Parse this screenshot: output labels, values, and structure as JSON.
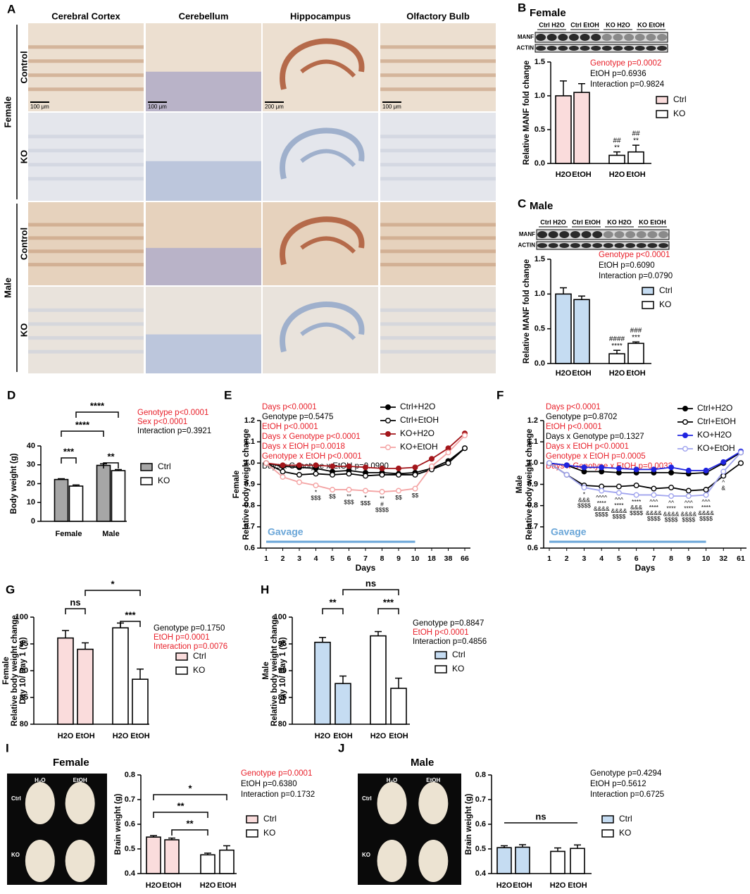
{
  "figure_a": {
    "label": "A",
    "columns": [
      "Cerebral Cortex",
      "Cerebellum",
      "Hippocampus",
      "Olfactory Bulb"
    ],
    "groups": [
      {
        "name": "Female",
        "rows": [
          "Control",
          "KO"
        ]
      },
      {
        "name": "Male",
        "rows": [
          "Control",
          "KO"
        ]
      }
    ],
    "scale_bars": [
      "100 μm",
      "100 μm",
      "200 μm",
      "100 μm"
    ]
  },
  "chart_data": [
    {
      "type": "bar",
      "panel": "B",
      "title": "Female",
      "ylabel": "Relative MANF fold change",
      "categories": [
        "H2O",
        "EtOH"
      ],
      "series": [
        {
          "name": "Ctrl",
          "color": "#fadcdc",
          "values": [
            1.0,
            1.05
          ],
          "errors": [
            0.22,
            0.13
          ]
        },
        {
          "name": "KO",
          "color": "#ffffff",
          "values": [
            0.12,
            0.17
          ],
          "errors": [
            0.05,
            0.1
          ],
          "sig": [
            [
              "##",
              "**"
            ],
            [
              "##",
              "**"
            ]
          ]
        }
      ],
      "ylim": [
        0,
        1.5
      ],
      "yticks": [
        {
          "value": 0,
          "label": "0.0"
        },
        0.5,
        {
          "value": 1,
          "label": "1.0"
        },
        1.5
      ],
      "stats": [
        {
          "text": "Genotype p=0.0002",
          "color": "#e8202a"
        },
        {
          "text": "EtOH p=0.6936",
          "color": "#000000"
        },
        {
          "text": "Interaction p=0.9824",
          "color": "#000000"
        }
      ],
      "blot": {
        "lanes": [
          "Ctrl H2O",
          "Ctrl EtOH",
          "KO H2O",
          "KO EtOH"
        ],
        "bands": [
          "MANF",
          "ACTIN"
        ]
      }
    },
    {
      "type": "bar",
      "panel": "C",
      "title": "Male",
      "ylabel": "Relative MANF fold change",
      "categories": [
        "H2O",
        "EtOH"
      ],
      "series": [
        {
          "name": "Ctrl",
          "color": "#c5dcf2",
          "values": [
            1.0,
            0.92
          ],
          "errors": [
            0.09,
            0.05
          ]
        },
        {
          "name": "KO",
          "color": "#ffffff",
          "values": [
            0.14,
            0.29
          ],
          "errors": [
            0.05,
            0.02
          ],
          "sig": [
            [
              "####",
              "****"
            ],
            [
              "###",
              "***"
            ]
          ]
        }
      ],
      "ylim": [
        0,
        1.5
      ],
      "yticks": [
        {
          "value": 0,
          "label": "0.0"
        },
        0.5,
        {
          "value": 1,
          "label": "1.0"
        },
        1.5
      ],
      "stats": [
        {
          "text": "Genotype p<0.0001",
          "color": "#e8202a"
        },
        {
          "text": "EtOH p=0.6090",
          "color": "#000000"
        },
        {
          "text": "Interaction p=0.0790",
          "color": "#000000"
        }
      ],
      "blot": {
        "lanes": [
          "Ctrl H2O",
          "Ctrl EtOH",
          "KO H2O",
          "KO EtOH"
        ],
        "bands": [
          "MANF",
          "ACTIN"
        ]
      }
    },
    {
      "type": "bar",
      "panel": "D",
      "ylabel": "Body weight (g)",
      "categories": [
        "Female",
        "Male"
      ],
      "series": [
        {
          "name": "Ctrl",
          "color": "#a6a6a6",
          "values": [
            22.2,
            29.7
          ],
          "errors": [
            0.4,
            0.8
          ]
        },
        {
          "name": "KO",
          "color": "#ffffff",
          "values": [
            18.7,
            26.9
          ],
          "errors": [
            0.6,
            0.6
          ]
        }
      ],
      "ylim": [
        0,
        40
      ],
      "yticks": [
        0,
        10,
        20,
        30,
        40
      ],
      "brackets": [
        "***",
        "**",
        "****",
        "****"
      ],
      "stats": [
        {
          "text": "Genotype p<0.0001",
          "color": "#e8202a"
        },
        {
          "text": "Sex p<0.0001",
          "color": "#e8202a"
        },
        {
          "text": "Interaction p=0.3921",
          "color": "#000000"
        }
      ]
    },
    {
      "type": "line",
      "panel": "E",
      "ylabel": [
        "Female",
        "Relative body weight change"
      ],
      "xlabel": "Days",
      "annotation": "Gavage",
      "categories": [
        "1",
        "2",
        "3",
        "4",
        "5",
        "6",
        "7",
        "8",
        "9",
        "10",
        "18",
        "38",
        "66"
      ],
      "series": [
        {
          "name": "Ctrl+H2O",
          "color": "#000000",
          "open": false,
          "values": [
            1.0,
            0.985,
            0.98,
            0.975,
            0.96,
            0.965,
            0.955,
            0.955,
            0.95,
            0.955,
            0.975,
            1.01,
            1.07
          ]
        },
        {
          "name": "Ctrl+EtOH",
          "color": "#000000",
          "open": true,
          "values": [
            1.0,
            0.96,
            0.945,
            0.95,
            0.945,
            0.95,
            0.94,
            0.945,
            0.945,
            0.945,
            0.97,
            1.0,
            1.07
          ]
        },
        {
          "name": "KO+H2O",
          "color": "#a3161b",
          "open": false,
          "values": [
            1.0,
            0.99,
            0.99,
            0.99,
            0.985,
            0.985,
            0.98,
            0.975,
            0.975,
            0.98,
            1.02,
            1.07,
            1.14
          ]
        },
        {
          "name": "KO+EtOH",
          "color": "#f4a3a3",
          "open": true,
          "values": [
            1.0,
            0.935,
            0.91,
            0.895,
            0.875,
            0.875,
            0.87,
            0.865,
            0.87,
            0.88,
            0.985,
            1.05,
            1.13
          ]
        }
      ],
      "point_labels": [
        null,
        null,
        null,
        [
          "*",
          "$$$"
        ],
        [
          "$$"
        ],
        [
          "**",
          "$$$"
        ],
        [
          "*",
          "$$$"
        ],
        [
          "**",
          "#",
          "$$$$"
        ],
        [
          "$$"
        ],
        [
          "$$"
        ],
        null,
        null,
        null
      ],
      "ylim": [
        0.6,
        1.2
      ],
      "yticks": [
        0.6,
        0.7,
        0.8,
        0.9,
        {
          "value": 1,
          "label": "1.0"
        },
        1.1,
        1.2
      ],
      "stats": [
        {
          "text": "Days p<0.0001",
          "color": "#e8202a"
        },
        {
          "text": "Genotype p=0.5475",
          "color": "#000000"
        },
        {
          "text": "EtOH p<0.0001",
          "color": "#e8202a"
        },
        {
          "text": "Days x Genotype p<0.0001",
          "color": "#e8202a"
        },
        {
          "text": "Days x EtOH p=0.0018",
          "color": "#e8202a"
        },
        {
          "text": "Genotype x EtOH p<0.0001",
          "color": "#e8202a"
        },
        {
          "text": "Days x Genotype x EtOH p=0.0990",
          "color": "#000000"
        }
      ]
    },
    {
      "type": "line",
      "panel": "F",
      "ylabel": [
        "Male",
        "Relative body weight change"
      ],
      "xlabel": "Days",
      "annotation": "Gavage",
      "categories": [
        "1",
        "2",
        "3",
        "4",
        "5",
        "6",
        "7",
        "8",
        "9",
        "10",
        "32",
        "61"
      ],
      "series": [
        {
          "name": "Ctrl+H2O",
          "color": "#000000",
          "open": false,
          "values": [
            1.0,
            0.99,
            0.96,
            0.96,
            0.955,
            0.955,
            0.955,
            0.955,
            0.95,
            0.955,
            1.0,
            1.05
          ]
        },
        {
          "name": "Ctrl+EtOH",
          "color": "#000000",
          "open": true,
          "values": [
            1.0,
            0.945,
            0.895,
            0.89,
            0.89,
            0.895,
            0.88,
            0.885,
            0.87,
            0.875,
            0.94,
            1.0
          ]
        },
        {
          "name": "KO+H2O",
          "color": "#1f24e0",
          "open": false,
          "values": [
            1.0,
            0.99,
            0.98,
            0.98,
            0.975,
            0.97,
            0.97,
            0.98,
            0.965,
            0.965,
            1.005,
            1.055
          ]
        },
        {
          "name": "KO+EtOH",
          "color": "#a0a4ee",
          "open": true,
          "values": [
            1.0,
            0.945,
            0.885,
            0.87,
            0.86,
            0.85,
            0.85,
            0.845,
            0.845,
            0.85,
            0.96,
            1.05
          ]
        }
      ],
      "point_labels": [
        null,
        null,
        [
          "*",
          "&&&",
          "$$$$"
        ],
        [
          "^^^^",
          "****",
          "&&&&",
          "$$$$"
        ],
        [
          "^^^",
          "****",
          "&&&&",
          "$$$$"
        ],
        [
          "****",
          "&&&",
          "$$$$"
        ],
        [
          "^^^",
          "****",
          "&&&&",
          "$$$$"
        ],
        [
          "^^",
          "****",
          "&&&&",
          "$$$$"
        ],
        [
          "^^^",
          "****",
          "&&&&",
          "$$$$"
        ],
        [
          "^^^",
          "****",
          "&&&&",
          "$$$$"
        ],
        [
          "^",
          "&"
        ],
        null
      ],
      "ylim": [
        0.6,
        1.2
      ],
      "yticks": [
        0.6,
        0.7,
        0.8,
        0.9,
        {
          "value": 1,
          "label": "1.0"
        },
        1.1,
        1.2
      ],
      "stats": [
        {
          "text": "Days p<0.0001",
          "color": "#e8202a"
        },
        {
          "text": "Genotype p=0.8702",
          "color": "#000000"
        },
        {
          "text": "EtOH p<0.0001",
          "color": "#e8202a"
        },
        {
          "text": "Days x Genotype p=0.1327",
          "color": "#000000"
        },
        {
          "text": "Days x EtOH p<0.0001",
          "color": "#e8202a"
        },
        {
          "text": "Genotype x EtOH p=0.0005",
          "color": "#e8202a"
        },
        {
          "text": "Days x Genotype x EtOH p=0.0032",
          "color": "#e8202a"
        }
      ]
    },
    {
      "type": "bar",
      "panel": "G",
      "ylabel": [
        "Female",
        "Relative body weight change",
        "Day 10/ Day 1 (%)"
      ],
      "categories": [
        "H2O",
        "EtOH"
      ],
      "series": [
        {
          "name": "Ctrl",
          "color": "#fadcdc",
          "values": [
            96.1,
            94.0
          ],
          "errors": [
            1.4,
            1.2
          ]
        },
        {
          "name": "KO",
          "color": "#ffffff",
          "values": [
            98.0,
            88.4
          ],
          "errors": [
            0.9,
            1.9
          ]
        }
      ],
      "ylim": [
        80,
        100
      ],
      "yticks": [
        80,
        85,
        90,
        95,
        100
      ],
      "brackets": [
        "ns",
        "***",
        "*"
      ],
      "stats": [
        {
          "text": "Genotype p=0.1750",
          "color": "#000000"
        },
        {
          "text": "EtOH p=0.0001",
          "color": "#e8202a"
        },
        {
          "text": "Interaction p=0.0076",
          "color": "#e8202a"
        }
      ]
    },
    {
      "type": "bar",
      "panel": "H",
      "ylabel": [
        "Male",
        "Relative body weight change",
        "Day 10/ Day 1 (%)"
      ],
      "categories": [
        "H2O",
        "EtOH"
      ],
      "series": [
        {
          "name": "Ctrl",
          "color": "#c5dcf2",
          "values": [
            95.3,
            87.6
          ],
          "errors": [
            0.9,
            1.4
          ]
        },
        {
          "name": "KO",
          "color": "#ffffff",
          "values": [
            96.5,
            86.7
          ],
          "errors": [
            0.8,
            1.9
          ]
        }
      ],
      "ylim": [
        80,
        100
      ],
      "yticks": [
        80,
        85,
        90,
        95,
        100
      ],
      "brackets": [
        "**",
        "***",
        "ns"
      ],
      "stats": [
        {
          "text": "Genotype p=0.8847",
          "color": "#000000"
        },
        {
          "text": "EtOH p<0.0001",
          "color": "#e8202a"
        },
        {
          "text": "Interaction p=0.4856",
          "color": "#000000"
        }
      ]
    },
    {
      "type": "bar",
      "panel": "I",
      "title": "Female",
      "ylabel": "Brain weight (g)",
      "categories": [
        "H2O",
        "EtOH"
      ],
      "series": [
        {
          "name": "Ctrl",
          "color": "#fadcdc",
          "values": [
            0.548,
            0.537
          ],
          "errors": [
            0.006,
            0.007
          ]
        },
        {
          "name": "KO",
          "color": "#ffffff",
          "values": [
            0.476,
            0.495
          ],
          "errors": [
            0.007,
            0.018
          ]
        }
      ],
      "ylim": [
        0.4,
        0.8
      ],
      "yticks": [
        0.4,
        0.5,
        0.6,
        0.7,
        0.8
      ],
      "brackets": [
        "*",
        "**",
        "**"
      ],
      "stats": [
        {
          "text": "Genotype p=0.0001",
          "color": "#e8202a"
        },
        {
          "text": "EtOH p=0.6380",
          "color": "#000000"
        },
        {
          "text": "Interaction p=0.1732",
          "color": "#000000"
        }
      ],
      "photo": {
        "columns": [
          "H₂O",
          "EtOH"
        ],
        "rows": [
          "Ctrl",
          "KO"
        ]
      }
    },
    {
      "type": "bar",
      "panel": "J",
      "title": "Male",
      "ylabel": "Brain weight (g)",
      "categories": [
        "H2O",
        "EtOH"
      ],
      "series": [
        {
          "name": "Ctrl",
          "color": "#c5dcf2",
          "values": [
            0.505,
            0.507
          ],
          "errors": [
            0.008,
            0.01
          ]
        },
        {
          "name": "KO",
          "color": "#ffffff",
          "values": [
            0.49,
            0.502
          ],
          "errors": [
            0.014,
            0.014
          ]
        }
      ],
      "ylim": [
        0.4,
        0.8
      ],
      "yticks": [
        0.4,
        0.5,
        0.6,
        0.7,
        0.8
      ],
      "brackets": [
        "ns"
      ],
      "stats": [
        {
          "text": "Genotype p=0.4294",
          "color": "#000000"
        },
        {
          "text": "EtOH p=0.5612",
          "color": "#000000"
        },
        {
          "text": "Interaction p=0.6725",
          "color": "#000000"
        }
      ],
      "photo": {
        "columns": [
          "H₂O",
          "EtOH"
        ],
        "rows": [
          "Ctrl",
          "KO"
        ]
      }
    }
  ]
}
